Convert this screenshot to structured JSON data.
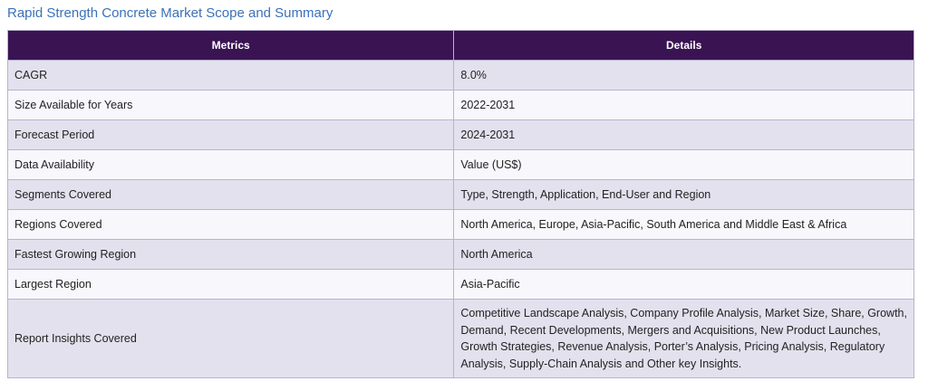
{
  "page": {
    "title": "Rapid Strength Concrete Market Scope and Summary"
  },
  "table": {
    "headers": [
      "Metrics",
      "Details"
    ],
    "rows": [
      {
        "metric": "CAGR",
        "detail": "8.0%"
      },
      {
        "metric": "Size Available for Years",
        "detail": "2022-2031"
      },
      {
        "metric": "Forecast Period",
        "detail": "2024-2031"
      },
      {
        "metric": "Data Availability",
        "detail": "Value (US$)"
      },
      {
        "metric": "Segments Covered",
        "detail": "Type, Strength, Application, End-User and Region"
      },
      {
        "metric": "Regions Covered",
        "detail": "North America, Europe, Asia-Pacific, South America and Middle East & Africa"
      },
      {
        "metric": "Fastest Growing Region",
        "detail": "North America"
      },
      {
        "metric": "Largest Region",
        "detail": "Asia-Pacific"
      },
      {
        "metric": "Report Insights Covered",
        "detail": "Competitive Landscape Analysis, Company Profile Analysis, Market Size, Share, Growth, Demand, Recent Developments, Mergers and Acquisitions, New Product Launches, Growth Strategies, Revenue Analysis, Porter’s Analysis, Pricing Analysis, Regulatory Analysis, Supply-Chain Analysis and Other key Insights."
      }
    ]
  },
  "colors": {
    "header_bg": "#3a1352",
    "title_color": "#3a72b8",
    "row_odd": "#e4e1ee",
    "row_even": "#f8f7fb"
  }
}
